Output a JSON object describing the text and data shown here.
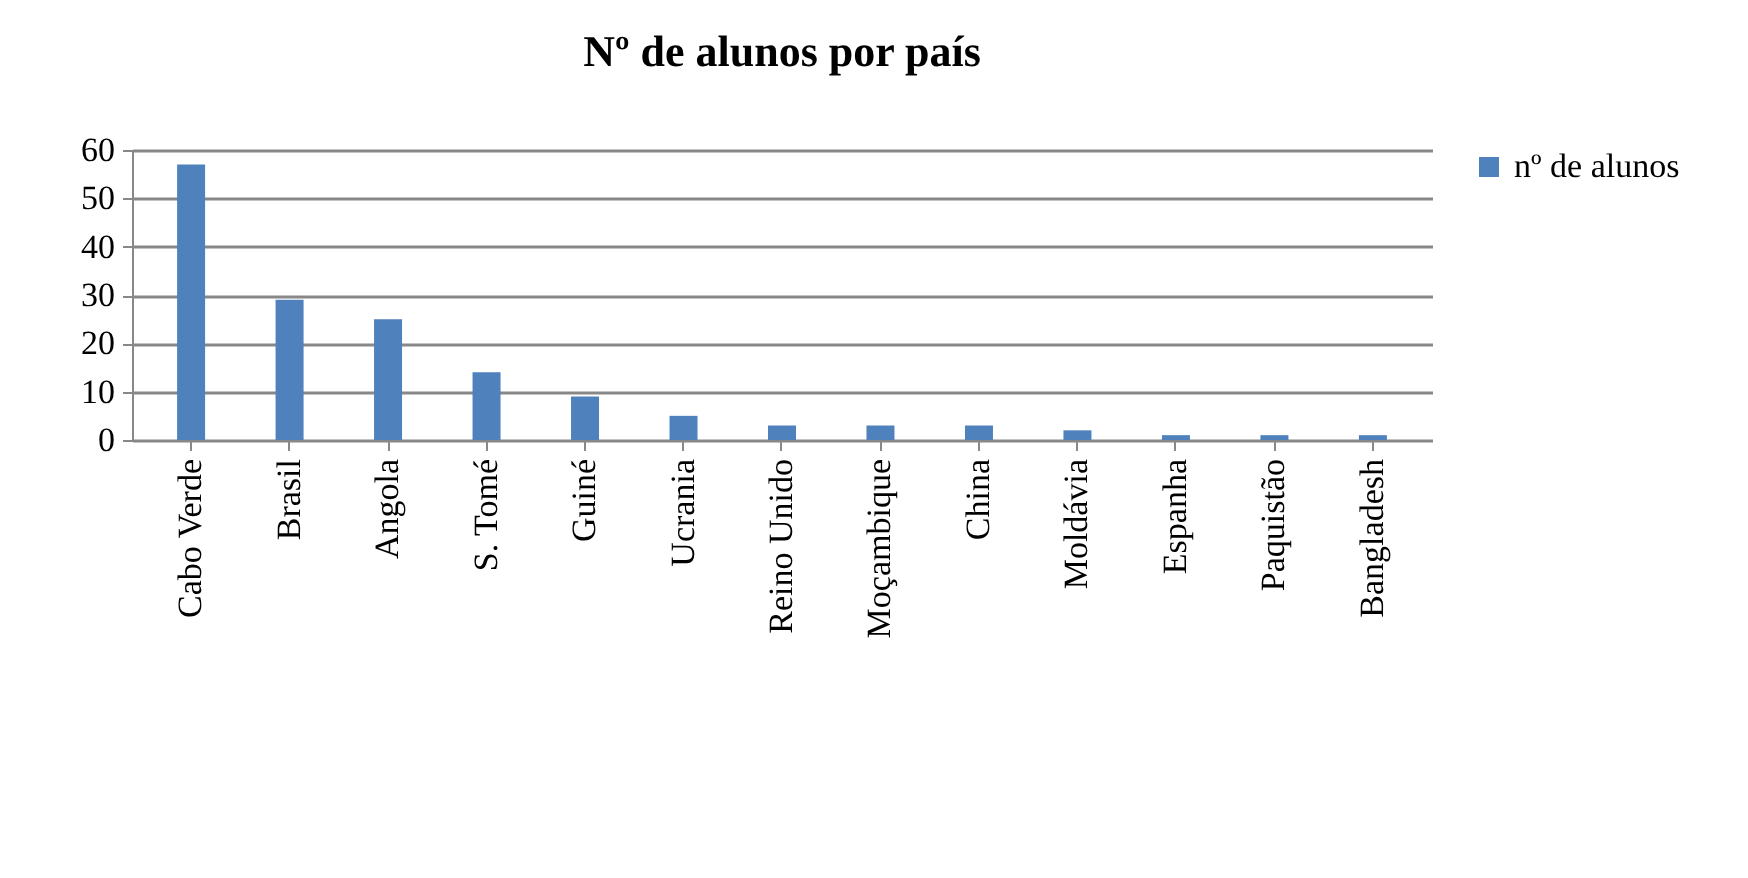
{
  "chart_data": {
    "type": "bar",
    "title": "Nº de alunos por país",
    "categories": [
      "Cabo Verde",
      "Brasil",
      "Angola",
      "S. Tomé",
      "Guiné",
      "Ucrania",
      "Reino Unido",
      "Moçambique",
      "China",
      "Moldávia",
      "Espanha",
      "Paquistão",
      "Bangladesh"
    ],
    "series": [
      {
        "name": "nº de alunos",
        "color": "#4f81bd",
        "values": [
          57,
          29,
          25,
          14,
          9,
          5,
          3,
          3,
          3,
          2,
          1,
          1,
          1
        ]
      }
    ],
    "ylim": [
      0,
      60
    ],
    "yticks": [
      0,
      10,
      20,
      30,
      40,
      50,
      60
    ],
    "grid": "y",
    "legend": "right"
  }
}
